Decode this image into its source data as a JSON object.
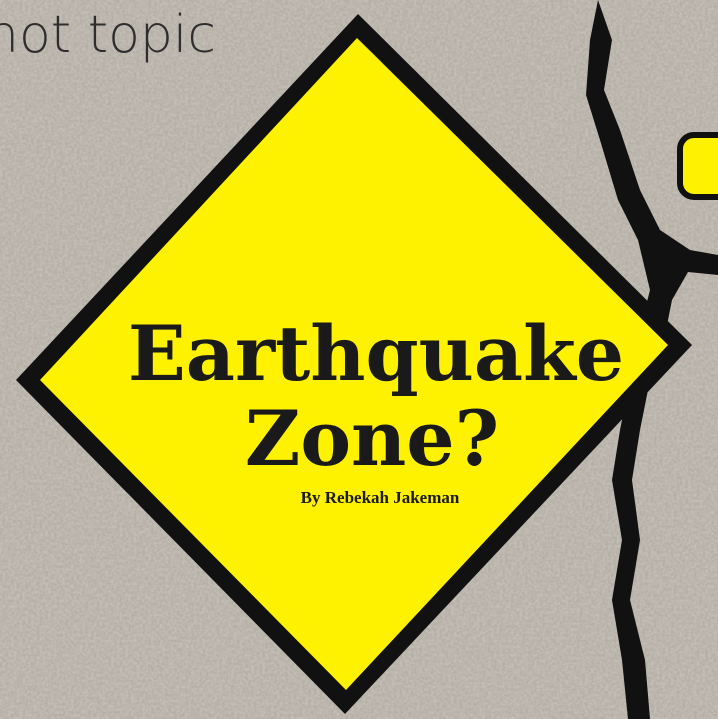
{
  "header": {
    "section": "hot topic"
  },
  "article": {
    "title_line1": "Earthquake",
    "title_line2": "Zone?",
    "byline": "By Rebekah Jakeman"
  }
}
